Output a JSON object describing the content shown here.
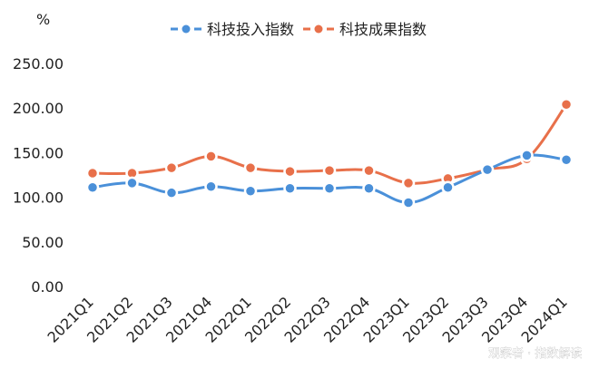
{
  "chart_data": {
    "type": "line",
    "unit": "%",
    "categories": [
      "2021Q1",
      "2021Q2",
      "2021Q3",
      "2021Q4",
      "2022Q1",
      "2022Q2",
      "2022Q3",
      "2022Q4",
      "2023Q1",
      "2023Q2",
      "2023Q3",
      "2023Q4",
      "2024Q1"
    ],
    "series": [
      {
        "name": "科技投入指数",
        "color": "#4a90d9",
        "values": [
          111,
          116,
          105,
          112,
          107,
          110,
          110,
          110,
          94,
          111,
          131,
          147,
          142
        ]
      },
      {
        "name": "科技成果指数",
        "color": "#e8704a",
        "values": [
          127,
          127,
          133,
          146,
          133,
          129,
          130,
          130,
          116,
          121,
          131,
          143,
          204
        ]
      }
    ],
    "ylim": [
      0,
      250
    ],
    "yticks": [
      "0.00",
      "50.00",
      "100.00",
      "150.00",
      "200.00",
      "250.00"
    ],
    "grid": false,
    "legend_position": "top-center"
  },
  "watermark": "观察者 · 指数解读"
}
